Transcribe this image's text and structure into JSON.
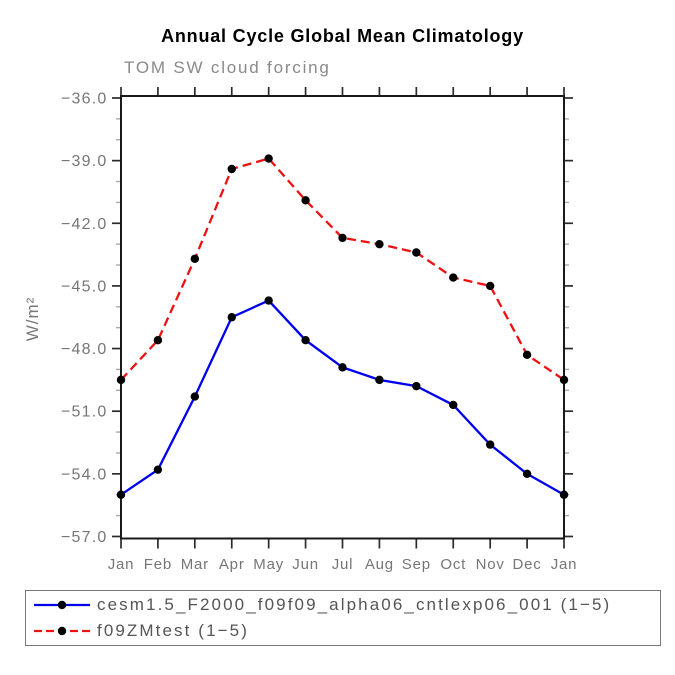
{
  "chart_data": {
    "type": "line",
    "title": "Annual Cycle Global Mean Climatology",
    "subtitle": "TOM SW cloud forcing",
    "ylabel": "W/m²",
    "x_categories": [
      "Jan",
      "Feb",
      "Mar",
      "Apr",
      "May",
      "Jun",
      "Jul",
      "Aug",
      "Sep",
      "Oct",
      "Nov",
      "Dec",
      "Jan"
    ],
    "ylim": [
      -36.0,
      -57.0
    ],
    "yticks": [
      -36,
      -39,
      -42,
      -45,
      -48,
      -51,
      -54,
      -57
    ],
    "ytick_labels": [
      "−36.0",
      "−39.0",
      "−42.0",
      "−45.0",
      "−48.0",
      "−51.0",
      "−54.0",
      "−57.0"
    ],
    "minor_tick_interval": 1,
    "grid": false,
    "legend_position": "bottom-left",
    "marker": "filled-circle",
    "marker_color": "#000000",
    "series": [
      {
        "name": "cesm1.5_F2000_f09f09_alpha06_cntlexp06_001 (1−5)",
        "color": "#0000ee",
        "style": "solid",
        "values": [
          -55.0,
          -53.8,
          -50.3,
          -46.5,
          -45.7,
          -47.6,
          -48.9,
          -49.5,
          -49.8,
          -50.7,
          -52.6,
          -54.0,
          -55.0
        ]
      },
      {
        "name": "f09ZMtest (1−5)",
        "color": "#ee1111",
        "style": "dashed",
        "values": [
          -49.5,
          -47.6,
          -43.7,
          -39.4,
          -38.9,
          -40.9,
          -42.7,
          -43.0,
          -43.4,
          -44.6,
          -45.0,
          -48.3,
          -49.5
        ]
      }
    ]
  },
  "colors": {
    "axis_frame": "#1a1a1a",
    "major_tick": "#2b2b2b",
    "minor_tick": "#aaaaaa",
    "tick_label": "#767676",
    "subtitle_text": "#8a8a8a",
    "legend_text": "#555555",
    "legend_border": "#777777",
    "background": "#ffffff"
  }
}
